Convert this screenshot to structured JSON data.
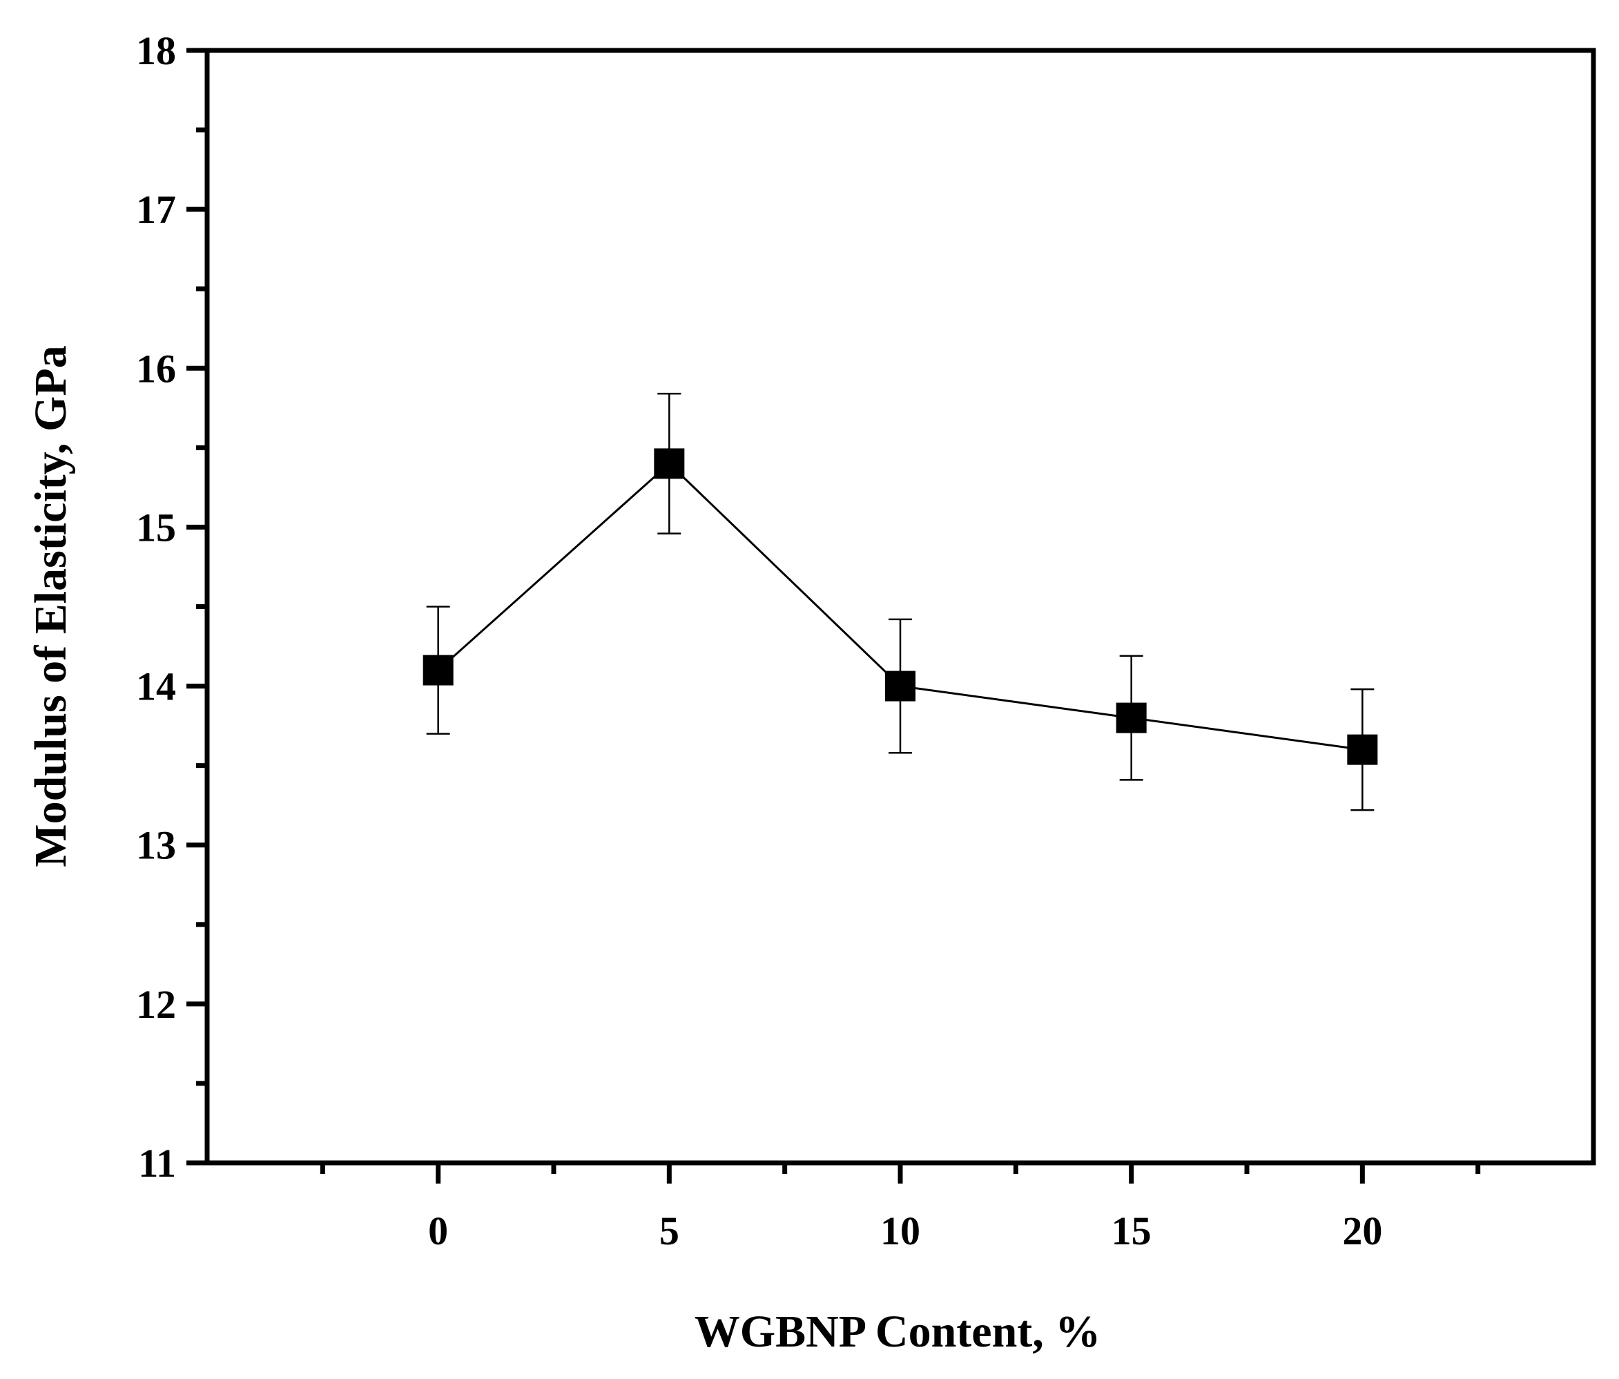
{
  "chart_data": {
    "type": "line",
    "title": "",
    "xlabel": "WGBNP Content, %",
    "ylabel": "Modulus of Elasticity, GPa",
    "xlim": [
      -5,
      25
    ],
    "ylim": [
      11,
      18
    ],
    "x_ticks": [
      0,
      5,
      10,
      15,
      20
    ],
    "y_ticks": [
      11,
      12,
      13,
      14,
      15,
      16,
      17,
      18
    ],
    "grid": false,
    "legend": "none",
    "series": [
      {
        "x": [
          0,
          5,
          10,
          15,
          20
        ],
        "y": [
          14.1,
          15.4,
          14.0,
          13.8,
          13.6
        ],
        "error": [
          0.4,
          0.44,
          0.42,
          0.39,
          0.38
        ],
        "marker": "square",
        "color": "#000000"
      }
    ]
  }
}
